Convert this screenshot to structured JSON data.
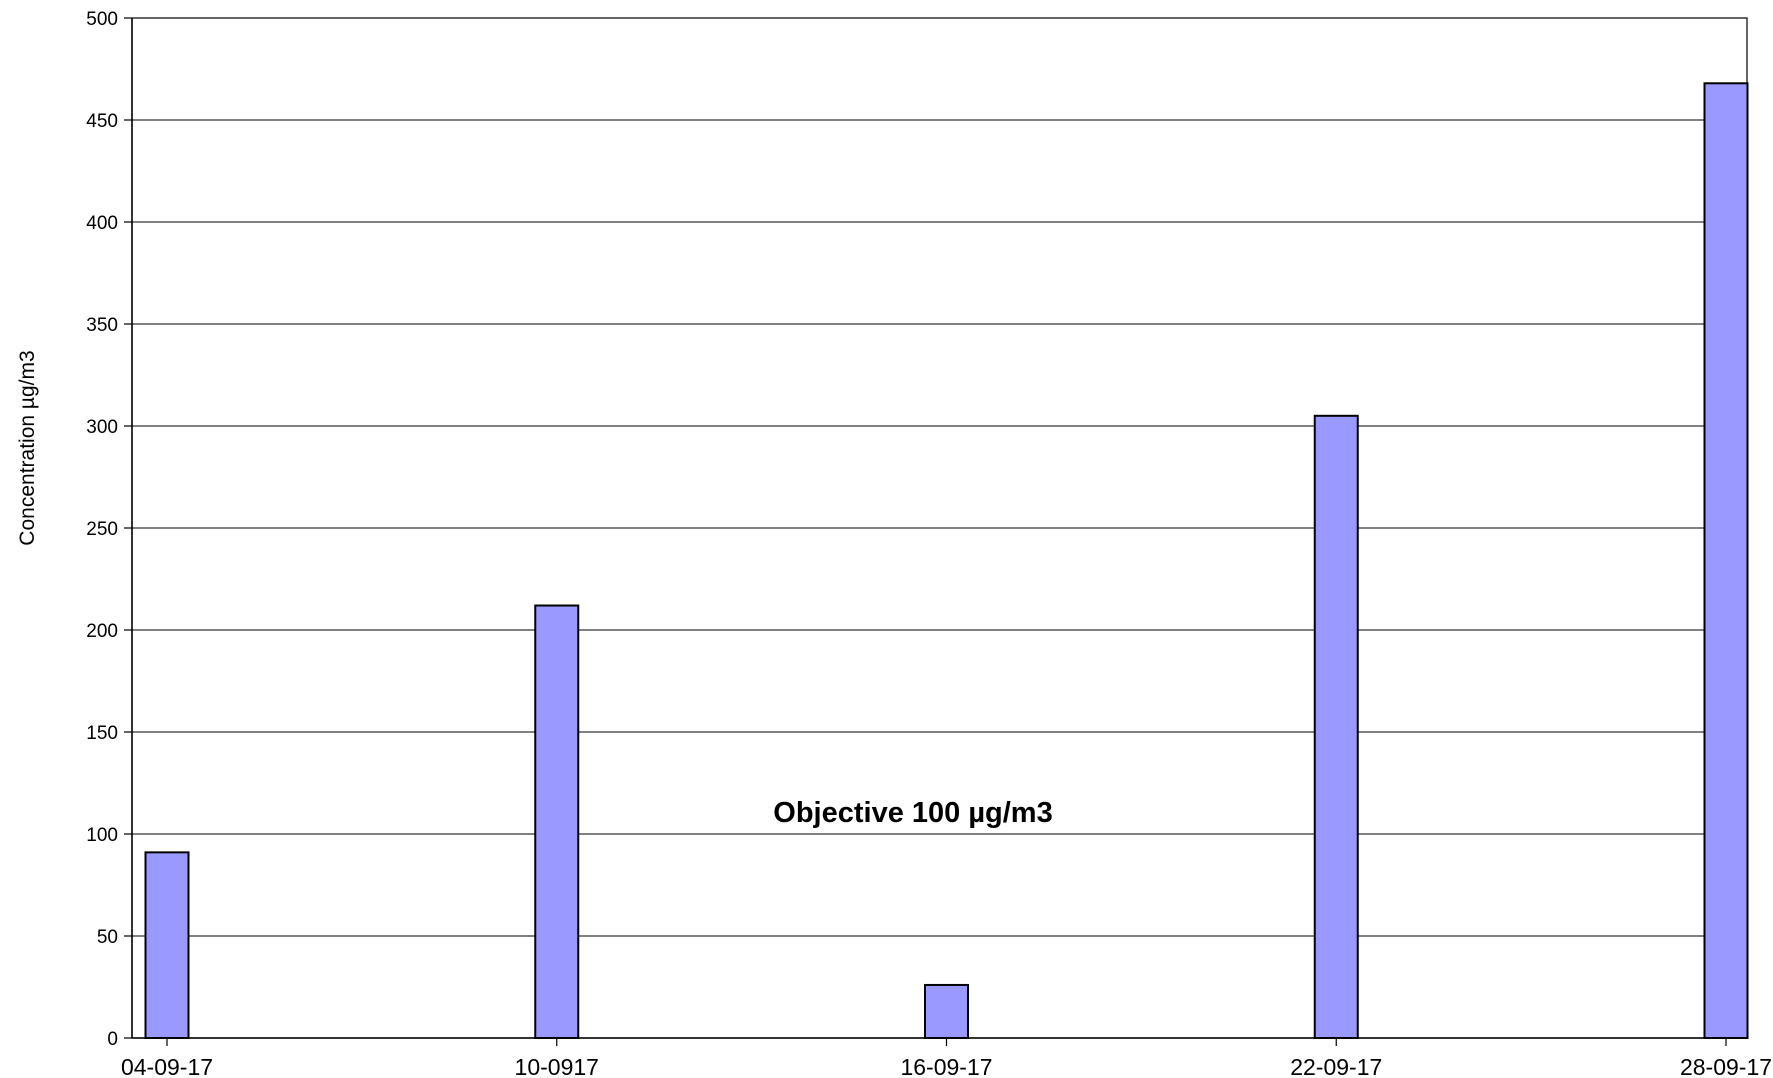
{
  "chart_data": {
    "type": "bar",
    "title": "",
    "xlabel": "",
    "ylabel": "Concentration µg/m3",
    "ylim": [
      0,
      500
    ],
    "yticks": [
      0,
      50,
      100,
      150,
      200,
      250,
      300,
      350,
      400,
      450,
      500
    ],
    "grid": true,
    "legend": "none",
    "x_type": "date",
    "x_tick_labels": [
      "04-09-17",
      "10-0917",
      "16-09-17",
      "22-09-17",
      "28-09-17"
    ],
    "x_tick_dates": [
      "2017-09-04",
      "2017-09-10",
      "2017-09-16",
      "2017-09-22",
      "2017-09-28"
    ],
    "series": [
      {
        "color": "#9999ff",
        "points": [
          {
            "date": "2017-09-04",
            "value": 91
          },
          {
            "date": "2017-09-10",
            "value": 212
          },
          {
            "date": "2017-09-16",
            "value": 26
          },
          {
            "date": "2017-09-22",
            "value": 305
          },
          {
            "date": "2017-09-28",
            "value": 468
          }
        ]
      }
    ],
    "annotations": [
      {
        "text": "Objective 100 µg/m3"
      }
    ],
    "colors": {
      "bar_fill": "#9999ff",
      "bar_stroke": "#000000",
      "grid": "#000000",
      "axis": "#000000",
      "background": "#ffffff"
    }
  }
}
